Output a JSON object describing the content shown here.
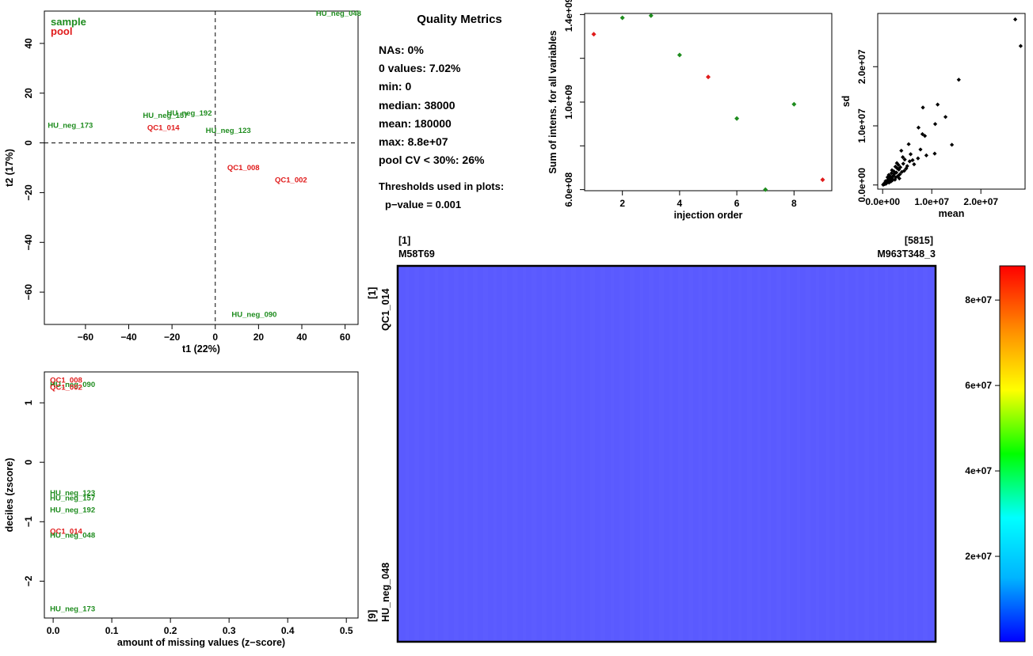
{
  "colors": {
    "sample": "#1e8c1e",
    "pool": "#e01b1b",
    "heatmap_fill": "#5a5aff"
  },
  "quality_metrics": {
    "title": "Quality Metrics",
    "items": [
      "NAs: 0%",
      "0 values: 7.02%",
      "min: 0",
      "median: 38000",
      "mean: 180000",
      "max: 8.8e+07",
      "pool CV < 30%: 26%"
    ],
    "thresholds_title": "Thresholds used in plots:",
    "thresholds": [
      "p−value = 0.001"
    ]
  },
  "chart_data": [
    {
      "id": "pca",
      "type": "scatter",
      "xlabel": "t1 (22%)",
      "ylabel": "t2 (17%)",
      "xlim": [
        -79,
        66
      ],
      "ylim": [
        -73,
        53
      ],
      "xticks": [
        -60,
        -40,
        -20,
        0,
        20,
        40,
        60
      ],
      "yticks": [
        -60,
        -40,
        -20,
        0,
        20,
        40
      ],
      "ref_lines": {
        "x": 0,
        "y": 0
      },
      "legend": [
        "sample",
        "pool"
      ],
      "legend_position": "top-left",
      "points": [
        {
          "label": "HU_neg_048",
          "group": "sample",
          "x": 57,
          "y": 52
        },
        {
          "label": "HU_neg_173",
          "group": "sample",
          "x": -67,
          "y": 7
        },
        {
          "label": "HU_neg_157",
          "group": "sample",
          "x": -23,
          "y": 11
        },
        {
          "label": "HU_neg_192",
          "group": "sample",
          "x": -12,
          "y": 12
        },
        {
          "label": "HU_neg_123",
          "group": "sample",
          "x": 6,
          "y": 5
        },
        {
          "label": "QC1_014",
          "group": "pool",
          "x": -24,
          "y": 6
        },
        {
          "label": "QC1_008",
          "group": "pool",
          "x": 13,
          "y": -10
        },
        {
          "label": "QC1_002",
          "group": "pool",
          "x": 35,
          "y": -15
        },
        {
          "label": "HU_neg_090",
          "group": "sample",
          "x": 18,
          "y": -69
        }
      ]
    },
    {
      "id": "missing",
      "type": "scatter",
      "xlabel": "amount of missing values (z−score)",
      "ylabel": "deciles (zscore)",
      "xlim": [
        -0.015,
        0.52
      ],
      "ylim": [
        -2.62,
        1.52
      ],
      "xticks": [
        0.0,
        0.1,
        0.2,
        0.3,
        0.4,
        0.5
      ],
      "yticks": [
        -2,
        -1,
        0,
        1
      ],
      "points": [
        {
          "label": "QC1_008",
          "group": "pool",
          "x": 0,
          "y": 1.38
        },
        {
          "label": "HU_neg_090",
          "group": "sample",
          "x": 0,
          "y": 1.31
        },
        {
          "label": "QC1_002",
          "group": "pool",
          "x": 0,
          "y": 1.26
        },
        {
          "label": "HU_neg_123",
          "group": "sample",
          "x": 0,
          "y": -0.52
        },
        {
          "label": "HU_neg_157",
          "group": "sample",
          "x": 0,
          "y": -0.6
        },
        {
          "label": "HU_neg_192",
          "group": "sample",
          "x": 0,
          "y": -0.8
        },
        {
          "label": "QC1_014",
          "group": "pool",
          "x": 0,
          "y": -1.16
        },
        {
          "label": "HU_neg_048",
          "group": "sample",
          "x": 0,
          "y": -1.23
        },
        {
          "label": "HU_neg_173",
          "group": "sample",
          "x": 0,
          "y": -2.47
        }
      ]
    },
    {
      "id": "injection",
      "type": "scatter",
      "xlabel": "injection order",
      "ylabel": "Sum of intens. for all variables",
      "xlim": [
        0.68,
        9.32
      ],
      "ylim": [
        595000000,
        1405000000
      ],
      "xticks": [
        2,
        4,
        6,
        8
      ],
      "yticks": [
        600000000,
        800000000,
        1000000000,
        1200000000,
        1400000000
      ],
      "ytick_labels": [
        "6.0e+08",
        "",
        "1.0e+09",
        "",
        "1.4e+09"
      ],
      "points": [
        {
          "x": 1,
          "y": 1310000000,
          "group": "pool"
        },
        {
          "x": 2,
          "y": 1385000000,
          "group": "sample"
        },
        {
          "x": 3,
          "y": 1395000000,
          "group": "sample"
        },
        {
          "x": 4,
          "y": 1215000000,
          "group": "sample"
        },
        {
          "x": 5,
          "y": 1115000000,
          "group": "pool"
        },
        {
          "x": 6,
          "y": 925000000,
          "group": "sample"
        },
        {
          "x": 7,
          "y": 600000000,
          "group": "sample"
        },
        {
          "x": 8,
          "y": 990000000,
          "group": "sample"
        },
        {
          "x": 9,
          "y": 645000000,
          "group": "pool"
        }
      ]
    },
    {
      "id": "meansd",
      "type": "scatter",
      "xlabel": "mean",
      "ylabel": "sd",
      "xlim": [
        -1000000,
        29000000
      ],
      "ylim": [
        -700000,
        29000000
      ],
      "xticks": [
        0,
        10000000,
        20000000
      ],
      "xtick_labels": [
        "0.0e+00",
        "1.0e+07",
        "2.0e+07"
      ],
      "yticks": [
        0,
        10000000,
        20000000
      ],
      "ytick_labels": [
        "0.0e+00",
        "1.0e+07",
        "2.0e+07"
      ],
      "points": [
        [
          27000000,
          28000000
        ],
        [
          28100000,
          23500000
        ],
        [
          15500000,
          17800000
        ],
        [
          11200000,
          13600000
        ],
        [
          8200000,
          13100000
        ],
        [
          12800000,
          11500000
        ],
        [
          10700000,
          10300000
        ],
        [
          7300000,
          9700000
        ],
        [
          8100000,
          8600000
        ],
        [
          10600000,
          5300000
        ],
        [
          14100000,
          6800000
        ],
        [
          8600000,
          8300000
        ],
        [
          5300000,
          6900000
        ],
        [
          5700000,
          5200000
        ],
        [
          4100000,
          4700000
        ],
        [
          7200000,
          4500000
        ],
        [
          8900000,
          5000000
        ],
        [
          2900000,
          3700000
        ],
        [
          3800000,
          5800000
        ],
        [
          6400000,
          3500000
        ],
        [
          4500000,
          4300000
        ],
        [
          3300000,
          2600000
        ],
        [
          2300000,
          2300000
        ],
        [
          4800000,
          2800000
        ],
        [
          3900000,
          2200000
        ],
        [
          2600000,
          3100000
        ],
        [
          1800000,
          2000000
        ],
        [
          3500000,
          1800000
        ],
        [
          3000000,
          2800000
        ],
        [
          2200000,
          1600000
        ],
        [
          1500000,
          1500000
        ],
        [
          5000000,
          3200000
        ],
        [
          4200000,
          3600000
        ],
        [
          1900000,
          1100000
        ],
        [
          2700000,
          1300000
        ],
        [
          1200000,
          1000000
        ],
        [
          900000,
          700000
        ],
        [
          1400000,
          900000
        ],
        [
          2000000,
          800000
        ],
        [
          700000,
          500000
        ],
        [
          500000,
          350000
        ],
        [
          300000,
          250000
        ],
        [
          1100000,
          550000
        ],
        [
          1600000,
          1200000
        ],
        [
          2400000,
          1900000
        ],
        [
          3100000,
          1500000
        ],
        [
          600000,
          650000
        ],
        [
          800000,
          300000
        ],
        [
          400000,
          150000
        ],
        [
          200000,
          100000
        ],
        [
          1000000,
          1300000
        ],
        [
          1300000,
          400000
        ],
        [
          2100000,
          1400000
        ],
        [
          2800000,
          2100000
        ],
        [
          3600000,
          3000000
        ],
        [
          4400000,
          2400000
        ],
        [
          3200000,
          3400000
        ],
        [
          5500000,
          4000000
        ],
        [
          6100000,
          4200000
        ],
        [
          7700000,
          6000000
        ],
        [
          100000,
          50000
        ],
        [
          250000,
          150000
        ],
        [
          450000,
          300000
        ],
        [
          650000,
          200000
        ],
        [
          850000,
          600000
        ],
        [
          1700000,
          600000
        ],
        [
          2500000,
          900000
        ],
        [
          1250000,
          1700000
        ],
        [
          1900000,
          2500000
        ],
        [
          3400000,
          1100000
        ]
      ]
    },
    {
      "id": "heatmap",
      "type": "heatmap",
      "col_first_index": "[1]",
      "col_first_label": "M58T69",
      "col_last_index": "[5815]",
      "col_last_label": "M963T348_3",
      "row_first_index": "[1]",
      "row_first_label": "QC1_014",
      "row_last_index": "[9]",
      "row_last_label": "HU_neg_048",
      "n_rows": 9,
      "n_cols": 5815,
      "colorbar_ticks": [
        20000000,
        40000000,
        60000000,
        80000000
      ],
      "colorbar_labels": [
        "2e+07",
        "4e+07",
        "6e+07",
        "8e+07"
      ],
      "colorbar_range": [
        0,
        88000000
      ]
    }
  ]
}
